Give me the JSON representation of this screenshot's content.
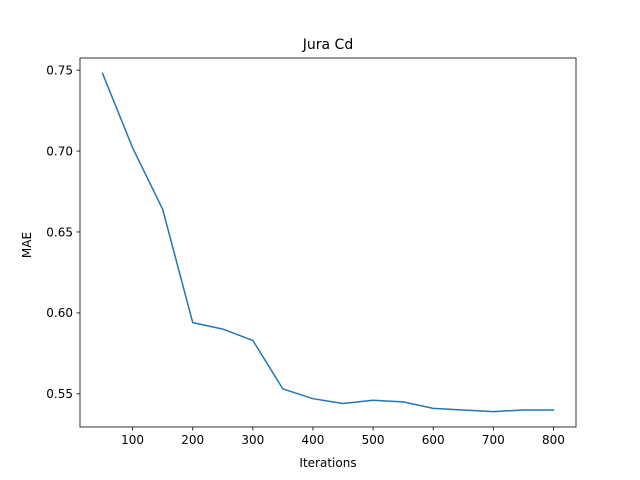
{
  "chart_data": {
    "type": "line",
    "title": "Jura Cd",
    "xlabel": "Iterations",
    "ylabel": "MAE",
    "xlim": [
      12.5,
      837.5
    ],
    "ylim": [
      0.5295,
      0.7575
    ],
    "xticks": [
      100,
      200,
      300,
      400,
      500,
      600,
      700,
      800
    ],
    "xtick_labels": [
      "100",
      "200",
      "300",
      "400",
      "500",
      "600",
      "700",
      "800"
    ],
    "yticks": [
      0.55,
      0.6,
      0.65,
      0.7,
      0.75
    ],
    "ytick_labels": [
      "0.55",
      "0.60",
      "0.65",
      "0.70",
      "0.75"
    ],
    "grid": false,
    "series": [
      {
        "color": "#1f77b4",
        "x": [
          50,
          100,
          150,
          200,
          250,
          300,
          350,
          400,
          450,
          500,
          550,
          600,
          650,
          700,
          750,
          800
        ],
        "y": [
          0.748,
          0.702,
          0.664,
          0.594,
          0.59,
          0.583,
          0.553,
          0.547,
          0.544,
          0.546,
          0.545,
          0.541,
          0.54,
          0.539,
          0.54,
          0.54
        ]
      }
    ]
  }
}
